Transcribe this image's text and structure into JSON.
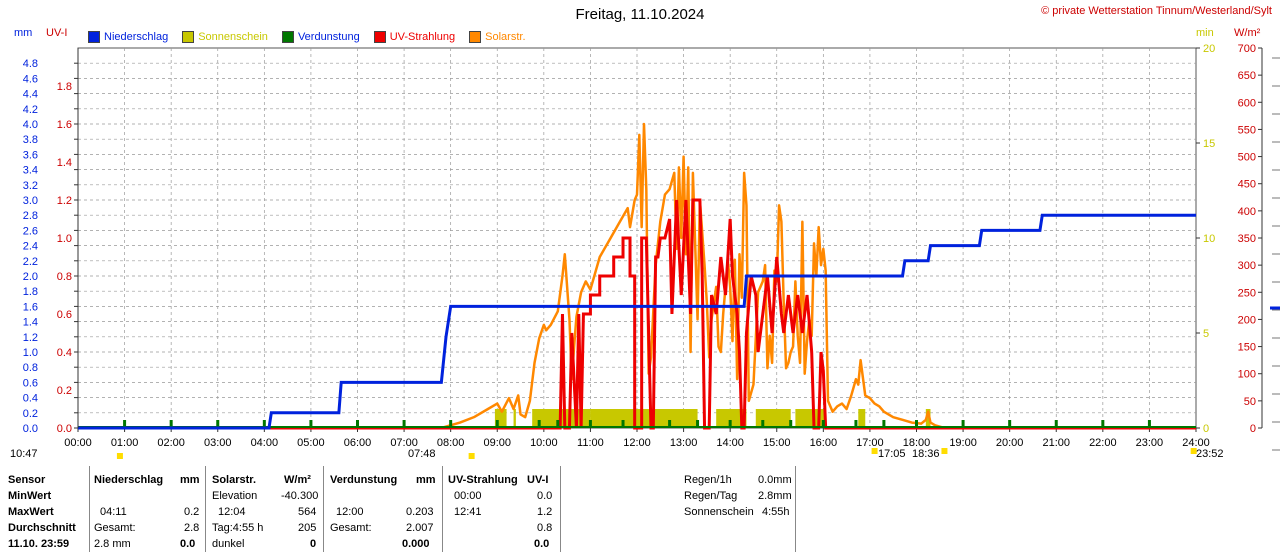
{
  "header": {
    "title": "Freitag, 11.10.2024",
    "copyright": "© private Wetterstation Tinnum/Westerland/Sylt"
  },
  "units": {
    "mm": "mm",
    "uv": "UV-I",
    "min": "min",
    "wm2": "W/m²"
  },
  "legend": [
    {
      "label": "Niederschlag",
      "color": "#0022dd",
      "text_color": "#0022dd"
    },
    {
      "label": "Sonnenschein",
      "color": "#c8c800",
      "text_color": "#c8c800"
    },
    {
      "label": "Verdunstung",
      "color": "#007700",
      "text_color": "#0022dd"
    },
    {
      "label": "UV-Strahlung",
      "color": "#ee0000",
      "text_color": "#ee0000"
    },
    {
      "label": "Solarstr.",
      "color": "#ff8800",
      "text_color": "#ff8800"
    }
  ],
  "colors": {
    "rain": "#0022dd",
    "sun": "#c8c800",
    "evap": "#007700",
    "uv": "#ee0000",
    "solar": "#ff8800",
    "grid": "#999999"
  },
  "time_stamps": {
    "left": "10:47",
    "sunrise": "07:48",
    "sunset_a": "17:05",
    "sunset_b": "18:36",
    "right": "23:52"
  },
  "table": {
    "sensor": {
      "header": "Sensor",
      "rows": [
        "MinWert",
        "MaxWert",
        "Durchschnitt",
        "11.10. 23:59"
      ]
    },
    "rain": {
      "header": "Niederschlag",
      "unit": "mm",
      "rows": [
        [
          "",
          "",
          ""
        ],
        [
          "04:11",
          "",
          "0.2"
        ],
        [
          "Gesamt:",
          "",
          "2.8"
        ],
        [
          "2.8 mm",
          "",
          "0.0"
        ]
      ]
    },
    "solar": {
      "header": "Solarstr.",
      "unit": "W/m²",
      "rows": [
        [
          "Elevation",
          "-40.300"
        ],
        [
          "12:04",
          "564"
        ],
        [
          "Tag:4:55 h",
          "205"
        ],
        [
          "dunkel",
          "0"
        ]
      ]
    },
    "evap": {
      "header": "Verdunstung",
      "unit": "mm",
      "rows": [
        [
          "",
          ""
        ],
        [
          "12:00",
          "0.203"
        ],
        [
          "Gesamt:",
          "2.007"
        ],
        [
          "",
          "0.000"
        ]
      ]
    },
    "uv": {
      "header": "UV-Strahlung",
      "unit": "UV-I",
      "rows": [
        [
          "00:00",
          "0.0"
        ],
        [
          "12:41",
          "1.2"
        ],
        [
          "",
          "0.8"
        ],
        [
          "",
          "0.0"
        ]
      ]
    },
    "summary": [
      {
        "label": "Regen/1h",
        "value": "0.0mm"
      },
      {
        "label": "Regen/Tag",
        "value": "2.8mm"
      },
      {
        "label": "Sonnenschein",
        "value": "4:55h"
      }
    ]
  },
  "chart_data": {
    "type": "line",
    "x_range": [
      "00:00",
      "24:00"
    ],
    "x_ticks": [
      "00:00",
      "01:00",
      "02:00",
      "03:00",
      "04:00",
      "05:00",
      "06:00",
      "07:00",
      "08:00",
      "09:00",
      "10:00",
      "11:00",
      "12:00",
      "13:00",
      "14:00",
      "15:00",
      "16:00",
      "17:00",
      "18:00",
      "19:00",
      "20:00",
      "21:00",
      "22:00",
      "23:00",
      "24:00"
    ],
    "axes": {
      "rain_mm": {
        "range": [
          0,
          5.0
        ],
        "ticks": [
          "0.0",
          "0.2",
          "0.4",
          "0.6",
          "0.8",
          "1.0",
          "1.2",
          "1.4",
          "1.6",
          "1.8",
          "2.0",
          "2.2",
          "2.4",
          "2.6",
          "2.8",
          "3.0",
          "3.2",
          "3.4",
          "3.6",
          "3.8",
          "4.0",
          "4.2",
          "4.4",
          "4.6",
          "4.8"
        ]
      },
      "uv_index": {
        "range": [
          0,
          2.0
        ],
        "ticks": [
          "0.0",
          "0.2",
          "0.4",
          "0.6",
          "0.8",
          "1.0",
          "1.2",
          "1.4",
          "1.6",
          "1.8"
        ]
      },
      "sunshine_min": {
        "range": [
          0,
          20
        ],
        "ticks": [
          "0",
          "5",
          "10",
          "15",
          "20"
        ]
      },
      "solar_wm2": {
        "range": [
          0,
          700
        ],
        "ticks": [
          "0",
          "50",
          "100",
          "150",
          "200",
          "250",
          "300",
          "350",
          "400",
          "450",
          "500",
          "550",
          "600",
          "650",
          "700"
        ]
      }
    },
    "grid": true,
    "series": [
      {
        "name": "Niederschlag",
        "axis": "rain_mm",
        "step": true,
        "points": [
          [
            0,
            0
          ],
          [
            4.1,
            0
          ],
          [
            4.15,
            0.2
          ],
          [
            5.6,
            0.2
          ],
          [
            5.65,
            0.6
          ],
          [
            7.8,
            0.6
          ],
          [
            7.9,
            1.2
          ],
          [
            8.0,
            1.6
          ],
          [
            14.3,
            1.6
          ],
          [
            14.35,
            2.0
          ],
          [
            17.7,
            2.0
          ],
          [
            17.75,
            2.2
          ],
          [
            18.25,
            2.2
          ],
          [
            18.3,
            2.4
          ],
          [
            19.35,
            2.4
          ],
          [
            19.4,
            2.6
          ],
          [
            20.65,
            2.6
          ],
          [
            20.7,
            2.8
          ],
          [
            24,
            2.8
          ]
        ]
      },
      {
        "name": "Sonnenschein",
        "axis": "sunshine_min",
        "bars": [
          [
            8.95,
            9.2
          ],
          [
            9.35,
            9.4
          ],
          [
            9.75,
            11.0
          ],
          [
            11.0,
            12.0
          ],
          [
            12.0,
            13.3
          ],
          [
            13.7,
            14.35
          ],
          [
            14.55,
            15.3
          ],
          [
            15.4,
            16.05
          ],
          [
            16.75,
            16.9
          ],
          [
            18.2,
            18.3
          ]
        ],
        "value": 1.0
      },
      {
        "name": "Verdunstung",
        "axis": "rain_mm",
        "marker_hours": [
          1.0,
          2.0,
          3.0,
          4.0,
          5.0,
          6.0,
          7.0,
          8.0,
          9.0,
          9.9,
          10.3,
          11.0,
          11.7,
          12.7,
          13.3,
          14.0,
          14.7,
          15.3,
          16.0,
          16.7,
          17.3,
          18.0,
          19.0,
          20.0,
          21.0,
          22.0,
          23.0
        ],
        "value": 0.0
      },
      {
        "name": "UV-Strahlung",
        "axis": "uv_index",
        "step": true,
        "points": [
          [
            0,
            0
          ],
          [
            10.35,
            0
          ],
          [
            10.4,
            0.6
          ],
          [
            10.45,
            0
          ],
          [
            10.55,
            0
          ],
          [
            10.6,
            0.5
          ],
          [
            10.7,
            0
          ],
          [
            10.75,
            0.6
          ],
          [
            10.8,
            0
          ],
          [
            10.85,
            0.6
          ],
          [
            11.0,
            0.6
          ],
          [
            11.0,
            0.7
          ],
          [
            11.2,
            0.7
          ],
          [
            11.2,
            0.8
          ],
          [
            11.5,
            0.8
          ],
          [
            11.5,
            0.9
          ],
          [
            11.7,
            0.9
          ],
          [
            11.7,
            1.0
          ],
          [
            11.85,
            1.0
          ],
          [
            11.85,
            0.8
          ],
          [
            11.95,
            0.8
          ],
          [
            11.95,
            0
          ],
          [
            12.1,
            0
          ],
          [
            12.1,
            1.0
          ],
          [
            12.2,
            1.0
          ],
          [
            12.3,
            0
          ],
          [
            12.35,
            0
          ],
          [
            12.4,
            0.9
          ],
          [
            12.45,
            0.9
          ],
          [
            12.5,
            1.0
          ],
          [
            12.6,
            1.0
          ],
          [
            12.7,
            1.1
          ],
          [
            12.75,
            0.6
          ],
          [
            12.85,
            1.2
          ],
          [
            12.95,
            0.7
          ],
          [
            13.05,
            1.2
          ],
          [
            13.15,
            0.6
          ],
          [
            13.2,
            1.2
          ],
          [
            13.35,
            1.2
          ],
          [
            13.4,
            0.8
          ],
          [
            13.45,
            0
          ],
          [
            13.55,
            0
          ],
          [
            13.6,
            0.7
          ],
          [
            13.7,
            0.6
          ],
          [
            13.8,
            0.9
          ],
          [
            13.9,
            0.7
          ],
          [
            14.0,
            1.1
          ],
          [
            14.05,
            0.8
          ],
          [
            14.15,
            0.6
          ],
          [
            14.2,
            0.4
          ],
          [
            14.25,
            0
          ],
          [
            14.3,
            0
          ],
          [
            14.35,
            0.5
          ],
          [
            14.45,
            0.8
          ],
          [
            14.55,
            0.7
          ],
          [
            14.6,
            0.4
          ],
          [
            14.7,
            0.6
          ],
          [
            14.8,
            0.8
          ],
          [
            14.9,
            0.5
          ],
          [
            15.0,
            0.9
          ],
          [
            15.1,
            0.6
          ],
          [
            15.15,
            0.5
          ],
          [
            15.25,
            0.7
          ],
          [
            15.35,
            0.5
          ],
          [
            15.45,
            0.7
          ],
          [
            15.55,
            0.5
          ],
          [
            15.65,
            0.7
          ],
          [
            15.75,
            0.4
          ],
          [
            15.8,
            0
          ],
          [
            15.9,
            0
          ],
          [
            15.95,
            0.4
          ],
          [
            16.0,
            0.3
          ],
          [
            16.05,
            0
          ],
          [
            24,
            0
          ]
        ]
      },
      {
        "name": "Solarstr.",
        "axis": "solar_wm2",
        "points": [
          [
            0,
            0
          ],
          [
            7.8,
            0
          ],
          [
            8.2,
            10
          ],
          [
            8.5,
            20
          ],
          [
            8.8,
            35
          ],
          [
            9.0,
            45
          ],
          [
            9.1,
            30
          ],
          [
            9.25,
            55
          ],
          [
            9.35,
            35
          ],
          [
            9.45,
            60
          ],
          [
            9.5,
            25
          ],
          [
            9.6,
            20
          ],
          [
            9.7,
            50
          ],
          [
            9.8,
            120
          ],
          [
            9.9,
            165
          ],
          [
            10.0,
            190
          ],
          [
            10.05,
            180
          ],
          [
            10.15,
            190
          ],
          [
            10.3,
            215
          ],
          [
            10.4,
            280
          ],
          [
            10.45,
            320
          ],
          [
            10.5,
            260
          ],
          [
            10.55,
            200
          ],
          [
            10.6,
            90
          ],
          [
            10.65,
            150
          ],
          [
            10.7,
            205
          ],
          [
            10.8,
            250
          ],
          [
            10.9,
            270
          ],
          [
            11.0,
            255
          ],
          [
            11.2,
            315
          ],
          [
            11.4,
            345
          ],
          [
            11.6,
            375
          ],
          [
            11.8,
            405
          ],
          [
            11.85,
            370
          ],
          [
            11.95,
            420
          ],
          [
            12.0,
            430
          ],
          [
            12.05,
            540
          ],
          [
            12.1,
            370
          ],
          [
            12.15,
            560
          ],
          [
            12.2,
            440
          ],
          [
            12.25,
            100
          ],
          [
            12.3,
            130
          ],
          [
            12.4,
            300
          ],
          [
            12.5,
            380
          ],
          [
            12.6,
            430
          ],
          [
            12.7,
            440
          ],
          [
            12.8,
            470
          ],
          [
            12.85,
            330
          ],
          [
            12.9,
            480
          ],
          [
            12.95,
            350
          ],
          [
            13.0,
            500
          ],
          [
            13.05,
            320
          ],
          [
            13.1,
            480
          ],
          [
            13.15,
            140
          ],
          [
            13.2,
            470
          ],
          [
            13.3,
            200
          ],
          [
            13.35,
            420
          ],
          [
            13.45,
            300
          ],
          [
            13.5,
            230
          ],
          [
            13.55,
            130
          ],
          [
            13.6,
            200
          ],
          [
            13.7,
            260
          ],
          [
            13.75,
            150
          ],
          [
            13.8,
            140
          ],
          [
            13.85,
            210
          ],
          [
            13.95,
            310
          ],
          [
            14.0,
            260
          ],
          [
            14.05,
            160
          ],
          [
            14.1,
            310
          ],
          [
            14.15,
            90
          ],
          [
            14.2,
            320
          ],
          [
            14.25,
            240
          ],
          [
            14.3,
            470
          ],
          [
            14.35,
            410
          ],
          [
            14.4,
            50
          ],
          [
            14.5,
            80
          ],
          [
            14.6,
            250
          ],
          [
            14.7,
            270
          ],
          [
            14.75,
            300
          ],
          [
            14.8,
            110
          ],
          [
            14.85,
            170
          ],
          [
            14.9,
            120
          ],
          [
            14.95,
            290
          ],
          [
            15.0,
            270
          ],
          [
            15.05,
            410
          ],
          [
            15.1,
            380
          ],
          [
            15.15,
            230
          ],
          [
            15.2,
            110
          ],
          [
            15.25,
            120
          ],
          [
            15.3,
            140
          ],
          [
            15.35,
            150
          ],
          [
            15.4,
            270
          ],
          [
            15.45,
            170
          ],
          [
            15.5,
            120
          ],
          [
            15.55,
            380
          ],
          [
            15.6,
            100
          ],
          [
            15.65,
            160
          ],
          [
            15.7,
            200
          ],
          [
            15.75,
            170
          ],
          [
            15.8,
            340
          ],
          [
            15.85,
            280
          ],
          [
            15.9,
            370
          ],
          [
            15.95,
            300
          ],
          [
            16.0,
            330
          ],
          [
            16.05,
            290
          ],
          [
            16.1,
            50
          ],
          [
            16.2,
            30
          ],
          [
            16.3,
            40
          ],
          [
            16.4,
            45
          ],
          [
            16.5,
            35
          ],
          [
            16.6,
            60
          ],
          [
            16.7,
            90
          ],
          [
            16.75,
            80
          ],
          [
            16.8,
            125
          ],
          [
            16.9,
            60
          ],
          [
            17.0,
            55
          ],
          [
            17.1,
            45
          ],
          [
            17.2,
            40
          ],
          [
            17.3,
            30
          ],
          [
            17.5,
            20
          ],
          [
            17.7,
            15
          ],
          [
            17.9,
            10
          ],
          [
            18.1,
            8
          ],
          [
            18.2,
            15
          ],
          [
            18.25,
            30
          ],
          [
            18.3,
            10
          ],
          [
            18.4,
            5
          ],
          [
            18.6,
            0
          ],
          [
            24,
            0
          ]
        ]
      }
    ]
  }
}
